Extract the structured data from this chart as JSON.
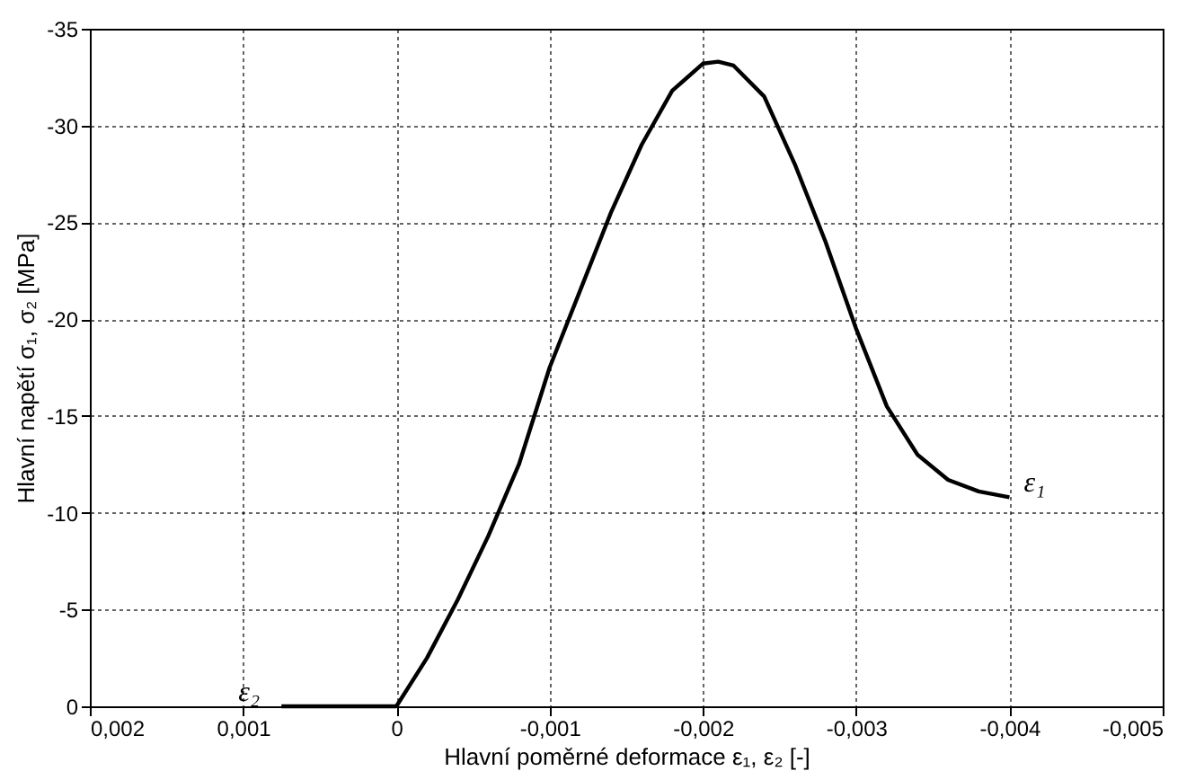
{
  "chart_data": {
    "type": "line",
    "xlabel": "Hlavní poměrné deformace ε₁, ε₂ [-]",
    "ylabel": "Hlavní napětí σ₁, σ₂ [MPa]",
    "xlim": [
      0.002,
      -0.005
    ],
    "ylim": [
      0,
      -35
    ],
    "xticks": [
      {
        "value": 0.002,
        "label": "0,002"
      },
      {
        "value": 0.001,
        "label": "0,001"
      },
      0,
      {
        "value": -0.001,
        "label": "-0,001"
      },
      {
        "value": -0.002,
        "label": "-0,002"
      },
      {
        "value": -0.003,
        "label": "-0,003"
      },
      {
        "value": -0.004,
        "label": "-0,004"
      },
      {
        "value": -0.005,
        "label": "-0,005"
      }
    ],
    "yticks": [
      0,
      -5,
      -10,
      -15,
      -20,
      -25,
      -30,
      -35
    ],
    "grid": true,
    "marker": "none",
    "line_style": "solid",
    "series": [
      {
        "color": "#000000",
        "x": [
          0,
          -0.0002,
          -0.0004,
          -0.0006,
          -0.0008,
          -0.001,
          -0.0012,
          -0.0014,
          -0.0016,
          -0.0018,
          -0.002,
          -0.0021,
          -0.0022,
          -0.0024,
          -0.0026,
          -0.0028,
          -0.003,
          -0.0032,
          -0.0034,
          -0.0036,
          -0.0038,
          -0.004
        ],
        "values": [
          0,
          -2.5,
          -5.5,
          -8.8,
          -12.5,
          -17.5,
          -21.5,
          -25.5,
          -29,
          -31.8,
          -33.2,
          -33.3,
          -33.1,
          -31.5,
          -28,
          -24,
          -19.5,
          -15.5,
          -13,
          -11.7,
          -11.1,
          -10.8
        ]
      },
      {
        "color": "#000000",
        "x": [
          0.00075,
          0
        ],
        "values": [
          0,
          0
        ]
      }
    ],
    "annotations": [
      {
        "text": "ε₁",
        "x": -0.004,
        "y": -10.8
      },
      {
        "text": "ε₂",
        "x": 0.00075,
        "y": 0
      }
    ]
  }
}
